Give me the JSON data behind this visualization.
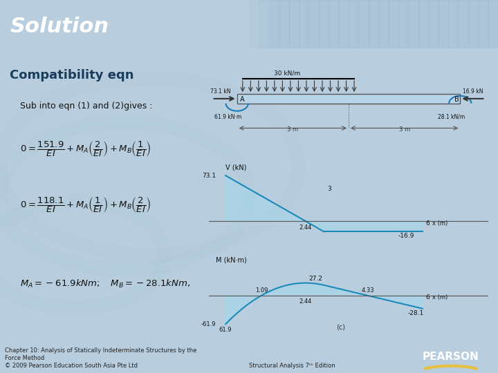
{
  "title": "Solution",
  "subtitle": "Compatibility eqn",
  "header_bg": "#1a5f8a",
  "header_text_color": "#ffffff",
  "body_bg": "#c8d8e8",
  "slide_bg": "#b8cede",
  "footer_text1": "Chapter 10: Analysis of Statically Indeterminate Structures by the\nForce Method",
  "footer_text2": "© 2009 Pearson Education South Asia Pte Ltd",
  "footer_text3": "Structural Analysis 7ᵗʰ Edition",
  "pearson_bg": "#1a3060",
  "pearson_text": "PEARSON",
  "eq_line1": "Sub into eqn (1) and (2)gives :",
  "eq_line2": "$0 = \\dfrac{151.9}{EI} + M_A\\left(\\dfrac{2}{EI}\\right) + M_B\\left(\\dfrac{1}{EI}\\right)$",
  "eq_line3": "$0 = \\dfrac{118.1}{EI} + M_A\\left(\\dfrac{1}{EI}\\right) + M_B\\left(\\dfrac{2}{EI}\\right)$",
  "eq_line4": "$M_A = -61.9kNm; \\quad M_B = -28.1kNm,$"
}
